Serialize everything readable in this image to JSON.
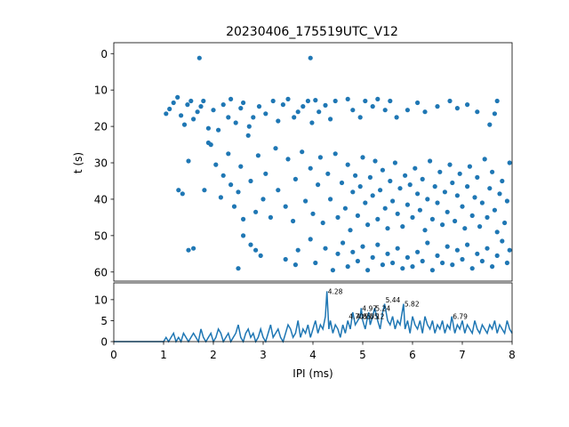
{
  "chart_data": [
    {
      "type": "scatter",
      "title": "20230406_175519UTC_V12",
      "xlabel": "",
      "ylabel": "t (s)",
      "xlim": [
        0,
        8
      ],
      "ylim": [
        62.5,
        -3
      ],
      "y_inverted": true,
      "yticks": [
        0,
        10,
        20,
        30,
        40,
        50,
        60
      ],
      "color": "#1f77b4",
      "grid": false,
      "points": [
        [
          1.72,
          1.2
        ],
        [
          3.95,
          1.2
        ],
        [
          1.05,
          16.5
        ],
        [
          1.12,
          15.2
        ],
        [
          1.2,
          13.5
        ],
        [
          1.28,
          12.0
        ],
        [
          1.35,
          17.0
        ],
        [
          1.42,
          19.5
        ],
        [
          1.48,
          14.0
        ],
        [
          1.55,
          13.0
        ],
        [
          1.6,
          18.0
        ],
        [
          1.68,
          16.0
        ],
        [
          1.75,
          14.5
        ],
        [
          1.8,
          13.0
        ],
        [
          1.9,
          20.5
        ],
        [
          2.0,
          15.5
        ],
        [
          2.1,
          21.0
        ],
        [
          2.2,
          14.0
        ],
        [
          2.3,
          17.5
        ],
        [
          2.35,
          12.5
        ],
        [
          2.45,
          19.0
        ],
        [
          2.55,
          15.0
        ],
        [
          2.6,
          13.5
        ],
        [
          2.72,
          20.0
        ],
        [
          2.8,
          17.5
        ],
        [
          2.92,
          14.5
        ],
        [
          3.05,
          16.5
        ],
        [
          3.2,
          13.0
        ],
        [
          3.3,
          18.5
        ],
        [
          3.4,
          14.0
        ],
        [
          3.5,
          12.5
        ],
        [
          3.62,
          17.5
        ],
        [
          3.7,
          16.0
        ],
        [
          3.8,
          14.5
        ],
        [
          3.9,
          13.0
        ],
        [
          3.98,
          19.0
        ],
        [
          4.05,
          12.8
        ],
        [
          4.12,
          16.0
        ],
        [
          4.25,
          14.2
        ],
        [
          4.35,
          18.0
        ],
        [
          4.45,
          13.0
        ],
        [
          4.7,
          12.5
        ],
        [
          4.8,
          15.5
        ],
        [
          4.95,
          17.5
        ],
        [
          5.05,
          13.0
        ],
        [
          5.2,
          14.5
        ],
        [
          5.3,
          12.5
        ],
        [
          5.45,
          15.5
        ],
        [
          5.55,
          13.0
        ],
        [
          5.68,
          17.5
        ],
        [
          5.9,
          15.5
        ],
        [
          6.1,
          13.5
        ],
        [
          6.25,
          16.0
        ],
        [
          6.5,
          14.5
        ],
        [
          6.75,
          13.0
        ],
        [
          6.9,
          15.0
        ],
        [
          7.1,
          14.0
        ],
        [
          7.3,
          16.0
        ],
        [
          7.55,
          19.5
        ],
        [
          7.7,
          13.0
        ],
        [
          7.65,
          16.5
        ],
        [
          1.3,
          37.5
        ],
        [
          1.38,
          38.5
        ],
        [
          1.5,
          29.5
        ],
        [
          1.6,
          53.5
        ],
        [
          1.5,
          54.0
        ],
        [
          1.82,
          37.5
        ],
        [
          1.9,
          24.5
        ],
        [
          1.95,
          25.0
        ],
        [
          2.05,
          30.5
        ],
        [
          2.15,
          39.5
        ],
        [
          2.2,
          33.5
        ],
        [
          2.3,
          27.5
        ],
        [
          2.35,
          36.0
        ],
        [
          2.42,
          42.0
        ],
        [
          2.5,
          38.0
        ],
        [
          2.55,
          31.0
        ],
        [
          2.6,
          45.5
        ],
        [
          2.7,
          22.5
        ],
        [
          2.75,
          35.0
        ],
        [
          2.85,
          43.5
        ],
        [
          2.9,
          28.0
        ],
        [
          3.0,
          40.0
        ],
        [
          3.05,
          33.0
        ],
        [
          3.15,
          45.0
        ],
        [
          3.25,
          26.0
        ],
        [
          3.3,
          37.5
        ],
        [
          3.45,
          42.0
        ],
        [
          3.5,
          29.0
        ],
        [
          3.6,
          46.0
        ],
        [
          3.65,
          34.5
        ],
        [
          3.78,
          27.0
        ],
        [
          3.85,
          40.5
        ],
        [
          3.95,
          31.5
        ],
        [
          4.0,
          44.0
        ],
        [
          4.1,
          36.0
        ],
        [
          4.15,
          28.5
        ],
        [
          4.2,
          46.5
        ],
        [
          4.3,
          33.0
        ],
        [
          4.35,
          40.0
        ],
        [
          4.45,
          27.5
        ],
        [
          4.5,
          45.0
        ],
        [
          4.58,
          35.5
        ],
        [
          4.65,
          42.5
        ],
        [
          4.7,
          30.5
        ],
        [
          4.75,
          48.5
        ],
        [
          4.8,
          38.0
        ],
        [
          4.85,
          33.5
        ],
        [
          4.9,
          44.5
        ],
        [
          4.95,
          36.5
        ],
        [
          5.0,
          28.5
        ],
        [
          5.05,
          41.0
        ],
        [
          5.1,
          47.0
        ],
        [
          5.15,
          34.0
        ],
        [
          5.2,
          39.0
        ],
        [
          5.25,
          29.5
        ],
        [
          5.3,
          45.5
        ],
        [
          5.35,
          37.5
        ],
        [
          5.4,
          32.0
        ],
        [
          5.45,
          42.5
        ],
        [
          5.5,
          48.0
        ],
        [
          5.55,
          35.0
        ],
        [
          5.6,
          40.5
        ],
        [
          5.65,
          30.0
        ],
        [
          5.7,
          44.0
        ],
        [
          5.75,
          37.0
        ],
        [
          5.8,
          47.5
        ],
        [
          5.85,
          33.5
        ],
        [
          5.9,
          41.5
        ],
        [
          5.95,
          36.0
        ],
        [
          6.0,
          45.0
        ],
        [
          6.05,
          31.5
        ],
        [
          6.1,
          38.5
        ],
        [
          6.15,
          43.0
        ],
        [
          6.2,
          34.5
        ],
        [
          6.25,
          48.5
        ],
        [
          6.3,
          40.0
        ],
        [
          6.35,
          29.5
        ],
        [
          6.4,
          45.5
        ],
        [
          6.45,
          36.5
        ],
        [
          6.5,
          41.0
        ],
        [
          6.55,
          32.5
        ],
        [
          6.6,
          47.0
        ],
        [
          6.65,
          38.0
        ],
        [
          6.7,
          43.5
        ],
        [
          6.75,
          30.5
        ],
        [
          6.8,
          35.5
        ],
        [
          6.85,
          46.0
        ],
        [
          6.9,
          39.0
        ],
        [
          6.95,
          33.0
        ],
        [
          7.0,
          42.0
        ],
        [
          7.05,
          48.0
        ],
        [
          7.1,
          36.5
        ],
        [
          7.15,
          31.0
        ],
        [
          7.2,
          44.5
        ],
        [
          7.25,
          39.5
        ],
        [
          7.3,
          34.0
        ],
        [
          7.35,
          47.5
        ],
        [
          7.4,
          41.0
        ],
        [
          7.45,
          29.0
        ],
        [
          7.5,
          45.0
        ],
        [
          7.55,
          37.0
        ],
        [
          7.6,
          32.5
        ],
        [
          7.65,
          43.0
        ],
        [
          7.7,
          49.0
        ],
        [
          7.75,
          38.5
        ],
        [
          7.8,
          35.0
        ],
        [
          7.85,
          46.5
        ],
        [
          7.9,
          40.5
        ],
        [
          7.95,
          30.0
        ],
        [
          2.5,
          59.0
        ],
        [
          2.6,
          50.0
        ],
        [
          2.75,
          52.5
        ],
        [
          2.85,
          54.0
        ],
        [
          2.95,
          55.5
        ],
        [
          3.45,
          56.5
        ],
        [
          3.65,
          58.0
        ],
        [
          3.7,
          54.0
        ],
        [
          3.95,
          51.0
        ],
        [
          4.05,
          57.5
        ],
        [
          4.25,
          53.5
        ],
        [
          4.4,
          59.5
        ],
        [
          4.5,
          55.0
        ],
        [
          4.6,
          52.0
        ],
        [
          4.7,
          58.5
        ],
        [
          4.8,
          54.5
        ],
        [
          4.9,
          57.0
        ],
        [
          5.0,
          53.0
        ],
        [
          5.1,
          59.5
        ],
        [
          5.2,
          56.0
        ],
        [
          5.3,
          52.5
        ],
        [
          5.4,
          58.0
        ],
        [
          5.5,
          55.0
        ],
        [
          5.6,
          57.5
        ],
        [
          5.7,
          53.5
        ],
        [
          5.8,
          59.0
        ],
        [
          5.9,
          56.0
        ],
        [
          6.0,
          58.5
        ],
        [
          6.1,
          54.5
        ],
        [
          6.2,
          57.0
        ],
        [
          6.3,
          52.0
        ],
        [
          6.4,
          59.5
        ],
        [
          6.5,
          55.5
        ],
        [
          6.6,
          57.5
        ],
        [
          6.7,
          53.0
        ],
        [
          6.8,
          58.0
        ],
        [
          6.9,
          54.0
        ],
        [
          7.0,
          56.5
        ],
        [
          7.1,
          52.5
        ],
        [
          7.2,
          59.0
        ],
        [
          7.3,
          55.0
        ],
        [
          7.4,
          57.0
        ],
        [
          7.5,
          53.5
        ],
        [
          7.6,
          58.5
        ],
        [
          7.7,
          55.5
        ],
        [
          7.8,
          51.5
        ],
        [
          7.9,
          57.5
        ],
        [
          7.95,
          54.0
        ]
      ]
    },
    {
      "type": "line",
      "xlabel": "IPI (ms)",
      "ylabel": "",
      "xlim": [
        0,
        8
      ],
      "ylim": [
        0,
        14
      ],
      "xticks": [
        0,
        1,
        2,
        3,
        4,
        5,
        6,
        7,
        8
      ],
      "yticks": [
        0,
        5,
        10
      ],
      "color": "#1f77b4",
      "x": [
        0.0,
        1.0,
        1.05,
        1.1,
        1.15,
        1.2,
        1.25,
        1.3,
        1.35,
        1.4,
        1.45,
        1.5,
        1.55,
        1.6,
        1.65,
        1.7,
        1.75,
        1.8,
        1.85,
        1.9,
        1.95,
        2.0,
        2.05,
        2.1,
        2.15,
        2.2,
        2.25,
        2.3,
        2.35,
        2.4,
        2.45,
        2.5,
        2.55,
        2.6,
        2.65,
        2.7,
        2.75,
        2.8,
        2.85,
        2.9,
        2.95,
        3.0,
        3.05,
        3.1,
        3.15,
        3.2,
        3.25,
        3.3,
        3.35,
        3.4,
        3.45,
        3.5,
        3.55,
        3.6,
        3.65,
        3.7,
        3.75,
        3.8,
        3.85,
        3.9,
        3.95,
        4.0,
        4.05,
        4.1,
        4.15,
        4.2,
        4.25,
        4.28,
        4.32,
        4.35,
        4.4,
        4.45,
        4.5,
        4.55,
        4.6,
        4.65,
        4.7,
        4.75,
        4.8,
        4.85,
        4.9,
        4.95,
        4.97,
        5.0,
        5.05,
        5.1,
        5.12,
        5.15,
        5.2,
        5.24,
        5.3,
        5.35,
        5.4,
        5.44,
        5.5,
        5.55,
        5.6,
        5.65,
        5.7,
        5.75,
        5.82,
        5.85,
        5.9,
        5.95,
        6.0,
        6.05,
        6.1,
        6.15,
        6.2,
        6.25,
        6.3,
        6.35,
        6.4,
        6.45,
        6.5,
        6.55,
        6.6,
        6.65,
        6.7,
        6.75,
        6.79,
        6.85,
        6.9,
        6.95,
        7.0,
        7.05,
        7.1,
        7.15,
        7.2,
        7.25,
        7.3,
        7.35,
        7.4,
        7.45,
        7.5,
        7.55,
        7.6,
        7.65,
        7.7,
        7.75,
        7.8,
        7.85,
        7.9,
        7.95,
        8.0
      ],
      "y": [
        0,
        0,
        1,
        0,
        1,
        2,
        0,
        1,
        0,
        2,
        1,
        0,
        1,
        2,
        1,
        0,
        3,
        1,
        0,
        1,
        2,
        0,
        1,
        3,
        2,
        0,
        1,
        2,
        0,
        1,
        2,
        4,
        1,
        0,
        2,
        3,
        1,
        2,
        0,
        1,
        3,
        1,
        0,
        2,
        4,
        1,
        2,
        3,
        1,
        0,
        2,
        4,
        3,
        1,
        2,
        5,
        1,
        3,
        2,
        4,
        1,
        3,
        5,
        2,
        4,
        3,
        6,
        12,
        3,
        5,
        2,
        4,
        3,
        1,
        4,
        2,
        5,
        3,
        7,
        4,
        5,
        6,
        8,
        5,
        3,
        6,
        7,
        4,
        6,
        8,
        5,
        3,
        7,
        9,
        5,
        4,
        6,
        3,
        5,
        4,
        9,
        3,
        5,
        2,
        6,
        4,
        3,
        5,
        2,
        6,
        4,
        3,
        5,
        2,
        4,
        3,
        5,
        2,
        4,
        3,
        6,
        2,
        4,
        3,
        5,
        2,
        4,
        3,
        2,
        5,
        3,
        2,
        4,
        3,
        2,
        4,
        3,
        5,
        2,
        4,
        3,
        2,
        5,
        3,
        2
      ],
      "annotations": [
        {
          "x": 4.28,
          "y": 12,
          "text": "4.28"
        },
        {
          "x": 4.97,
          "y": 8,
          "text": "4.97"
        },
        {
          "x": 5.24,
          "y": 8,
          "text": "5.24"
        },
        {
          "x": 5.44,
          "y": 10,
          "text": "5.44"
        },
        {
          "x": 5.82,
          "y": 9,
          "text": "5.82"
        },
        {
          "x": 6.79,
          "y": 6,
          "text": "6.79"
        },
        {
          "x": 4.7,
          "y": 6,
          "text": "4.70"
        },
        {
          "x": 4.85,
          "y": 6,
          "text": "4.85"
        },
        {
          "x": 5.0,
          "y": 6,
          "text": "5.05"
        },
        {
          "x": 5.12,
          "y": 6,
          "text": "5.12"
        }
      ]
    }
  ]
}
